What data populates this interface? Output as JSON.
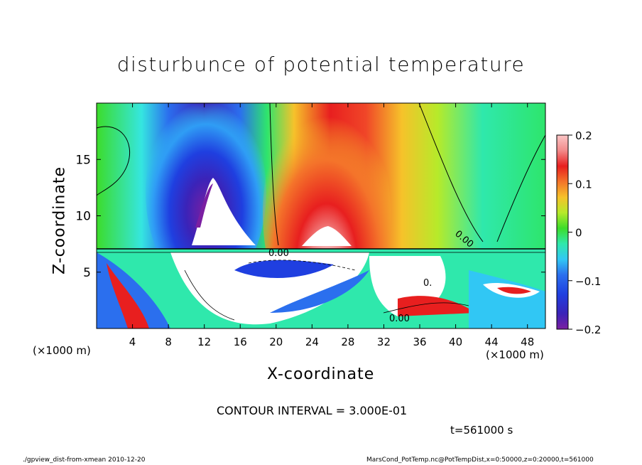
{
  "title": "disturbunce of potential temperature",
  "chart_data": {
    "type": "heatmap",
    "title": "disturbunce of potential temperature",
    "xlabel": "X-coordinate",
    "ylabel": "Z-coordinate",
    "x_unit_label": "(×1000 m)",
    "x_ticks": [
      4,
      8,
      12,
      16,
      20,
      24,
      28,
      32,
      36,
      40,
      44,
      48
    ],
    "y_ticks": [
      5,
      10,
      15
    ],
    "xlim": [
      0,
      50
    ],
    "ylim": [
      0,
      20
    ],
    "colorbar": {
      "range": [
        -0.2,
        0.2
      ],
      "tick_labels": [
        "0.2",
        "0.1",
        "0",
        "−0.1",
        "−0.2"
      ],
      "tick_values": [
        0.2,
        0.1,
        0,
        -0.1,
        -0.2
      ],
      "colors": [
        "#7b1fa2",
        "#3b23b8",
        "#1f3fe0",
        "#2b6fee",
        "#2f9df5",
        "#31c7f4",
        "#35e6e0",
        "#2fe8ac",
        "#2ee56c",
        "#3cdc2a",
        "#78e22a",
        "#b6ea2a",
        "#e6e62a",
        "#f6c22a",
        "#f69a2a",
        "#f4742a",
        "#f04628",
        "#e81f1f",
        "#f28a8a",
        "#fbc6c6"
      ]
    },
    "contour_labels": [
      "0.00",
      "0.00",
      "0.",
      "0.00"
    ],
    "contour_interval": 0.3
  },
  "contour_note": "CONTOUR INTERVAL = 3.000E-01",
  "time_note": "t=561000 s",
  "footer_left": "./gpview_dist-from-xmean  2010-12-20",
  "footer_right": "MarsCond_PotTemp.nc@PotTempDist,x=0:50000,z=0:20000,t=561000"
}
